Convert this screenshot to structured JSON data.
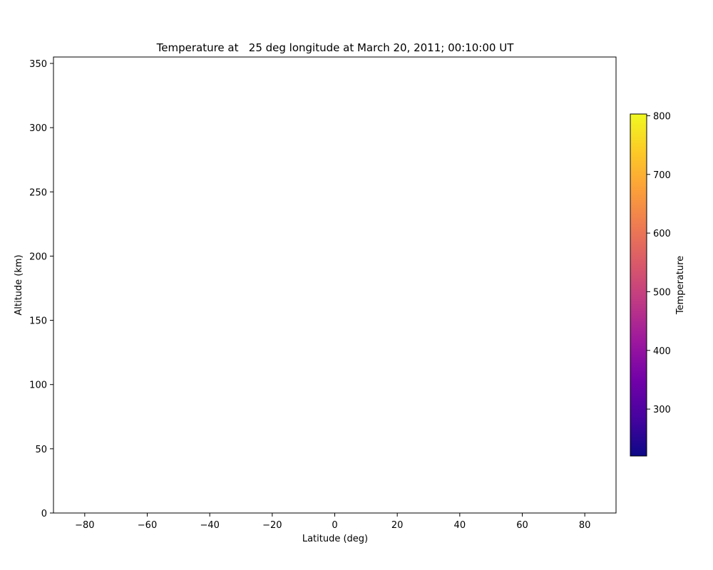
{
  "chart_data": {
    "type": "heatmap",
    "title": "Temperature at   25 deg longitude at March 20, 2011; 00:10:00 UT",
    "xlabel": "Latitude (deg)",
    "ylabel": "Altitude (km)",
    "xlim": [
      -90,
      90
    ],
    "ylim": [
      0,
      355
    ],
    "x_ticks": [
      -80,
      -60,
      -40,
      -20,
      0,
      20,
      40,
      60,
      80
    ],
    "x_tick_labels": [
      "−80",
      "−60",
      "−40",
      "−20",
      "0",
      "20",
      "40",
      "60",
      "80"
    ],
    "y_ticks": [
      0,
      50,
      100,
      150,
      200,
      250,
      300,
      350
    ],
    "y_tick_labels": [
      "0",
      "50",
      "100",
      "150",
      "200",
      "250",
      "300",
      "350"
    ],
    "grid": false,
    "values": [],
    "colorbar": {
      "label": "Temperature",
      "colormap": "plasma",
      "range": [
        220,
        803
      ],
      "ticks": [
        300,
        400,
        500,
        600,
        700,
        800
      ],
      "tick_labels": [
        "300",
        "400",
        "500",
        "600",
        "700",
        "800"
      ],
      "colors": [
        "#0d0887",
        "#46039f",
        "#7201a8",
        "#9c179e",
        "#bd3786",
        "#d8576b",
        "#ed7953",
        "#fb9f3a",
        "#fdca26",
        "#f0f921"
      ]
    }
  }
}
